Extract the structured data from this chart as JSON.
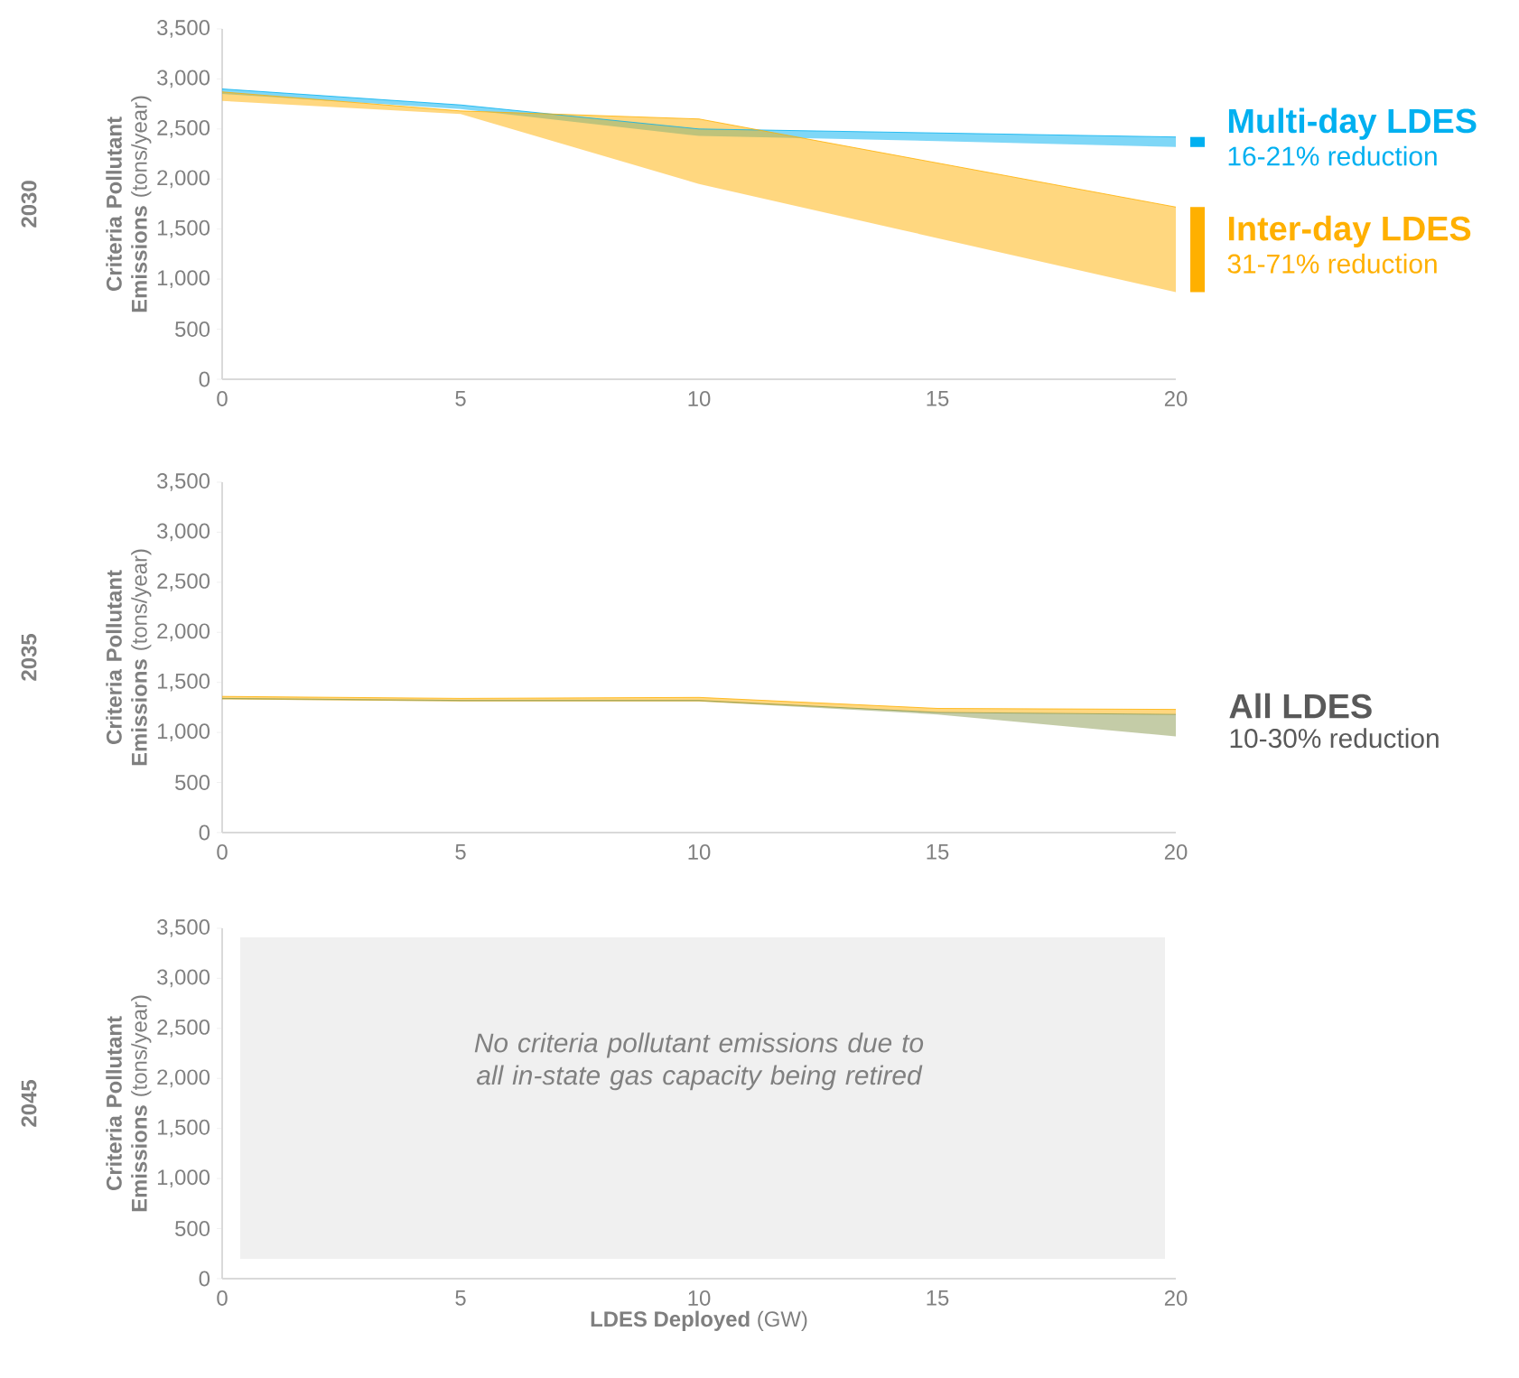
{
  "chart_data": [
    {
      "type": "line",
      "title": "2030",
      "ylabel": "**Criteria Pollutant Emissions** (tons/year)",
      "x": [
        0,
        5,
        10,
        15,
        20
      ],
      "series": [
        {
          "name": "Multi-day LDES",
          "color": "#00b0f0",
          "values": [
            2900,
            2740,
            2500,
            2460,
            2420
          ],
          "lower": [
            2850,
            2700,
            2430,
            2380,
            2320
          ],
          "upper": [
            2900,
            2740,
            2500,
            2460,
            2420
          ]
        },
        {
          "name": "Inter-day LDES",
          "color": "#ffb000",
          "values": [
            2870,
            2680,
            2600,
            2160,
            1720
          ],
          "lower": [
            2780,
            2650,
            1950,
            1410,
            870
          ],
          "upper": [
            2870,
            2680,
            2600,
            2160,
            1720
          ]
        }
      ],
      "annotations": [
        "16-21% reduction",
        "31-71% reduction"
      ],
      "xlim": [
        0,
        20
      ],
      "xticks": [
        0,
        5,
        10,
        15,
        20
      ],
      "ylim": [
        0,
        3500
      ],
      "yticks": [
        0,
        {
          "value": 500,
          "label": "500"
        },
        {
          "value": 1000,
          "label": "1,000"
        },
        {
          "value": 1500,
          "label": "1,500"
        },
        {
          "value": 2000,
          "label": "2,000"
        },
        {
          "value": 2500,
          "label": "2,500"
        },
        {
          "value": 3000,
          "label": "3,000"
        },
        {
          "value": 3500,
          "label": "3,500"
        }
      ]
    },
    {
      "type": "line",
      "title": "2035",
      "ylabel": "**Criteria Pollutant Emissions** (tons/year)",
      "x": [
        0,
        5,
        10,
        15,
        20
      ],
      "series": [
        {
          "color": "#8a9a50",
          "values": [
            1340,
            1320,
            1320,
            1200,
            1180
          ],
          "lower": [
            1330,
            1310,
            1310,
            1180,
            960
          ],
          "upper": [
            1340,
            1320,
            1320,
            1200,
            1180
          ]
        },
        {
          "color": "#ffb000",
          "values": [
            1360,
            1340,
            1350,
            1240,
            1230
          ],
          "lower": [
            1330,
            1310,
            1310,
            1200,
            1180
          ],
          "upper": [
            1360,
            1340,
            1350,
            1240,
            1230
          ]
        }
      ],
      "annotations": [
        "All LDES",
        "10-30% reduction"
      ],
      "xlim": [
        0,
        20
      ],
      "xticks": [
        0,
        5,
        10,
        15,
        20
      ],
      "ylim": [
        0,
        3500
      ],
      "yticks": [
        0,
        {
          "value": 500,
          "label": "500"
        },
        {
          "value": 1000,
          "label": "1,000"
        },
        {
          "value": 1500,
          "label": "1,500"
        },
        {
          "value": 2000,
          "label": "2,000"
        },
        {
          "value": 2500,
          "label": "2,500"
        },
        {
          "value": 3000,
          "label": "3,000"
        },
        {
          "value": 3500,
          "label": "3,500"
        }
      ]
    },
    {
      "type": "line",
      "title": "2045",
      "ylabel": "**Criteria Pollutant Emissions** (tons/year)",
      "xlabel": "**LDES Deployed** (GW)",
      "annotations": [
        "No criteria pollutant emissions due to all in-state gas capacity being retired"
      ],
      "xlim": [
        0,
        20
      ],
      "xticks": [
        0,
        5,
        10,
        15,
        20
      ],
      "ylim": [
        0,
        3500
      ],
      "yticks": [
        0,
        {
          "value": 500,
          "label": "500"
        },
        {
          "value": 1000,
          "label": "1,000"
        },
        {
          "value": 1500,
          "label": "1,500"
        },
        {
          "value": 2000,
          "label": "2,000"
        },
        {
          "value": 2500,
          "label": "2,500"
        },
        {
          "value": 3000,
          "label": "3,000"
        },
        {
          "value": 3500,
          "label": "3,500"
        }
      ]
    }
  ]
}
